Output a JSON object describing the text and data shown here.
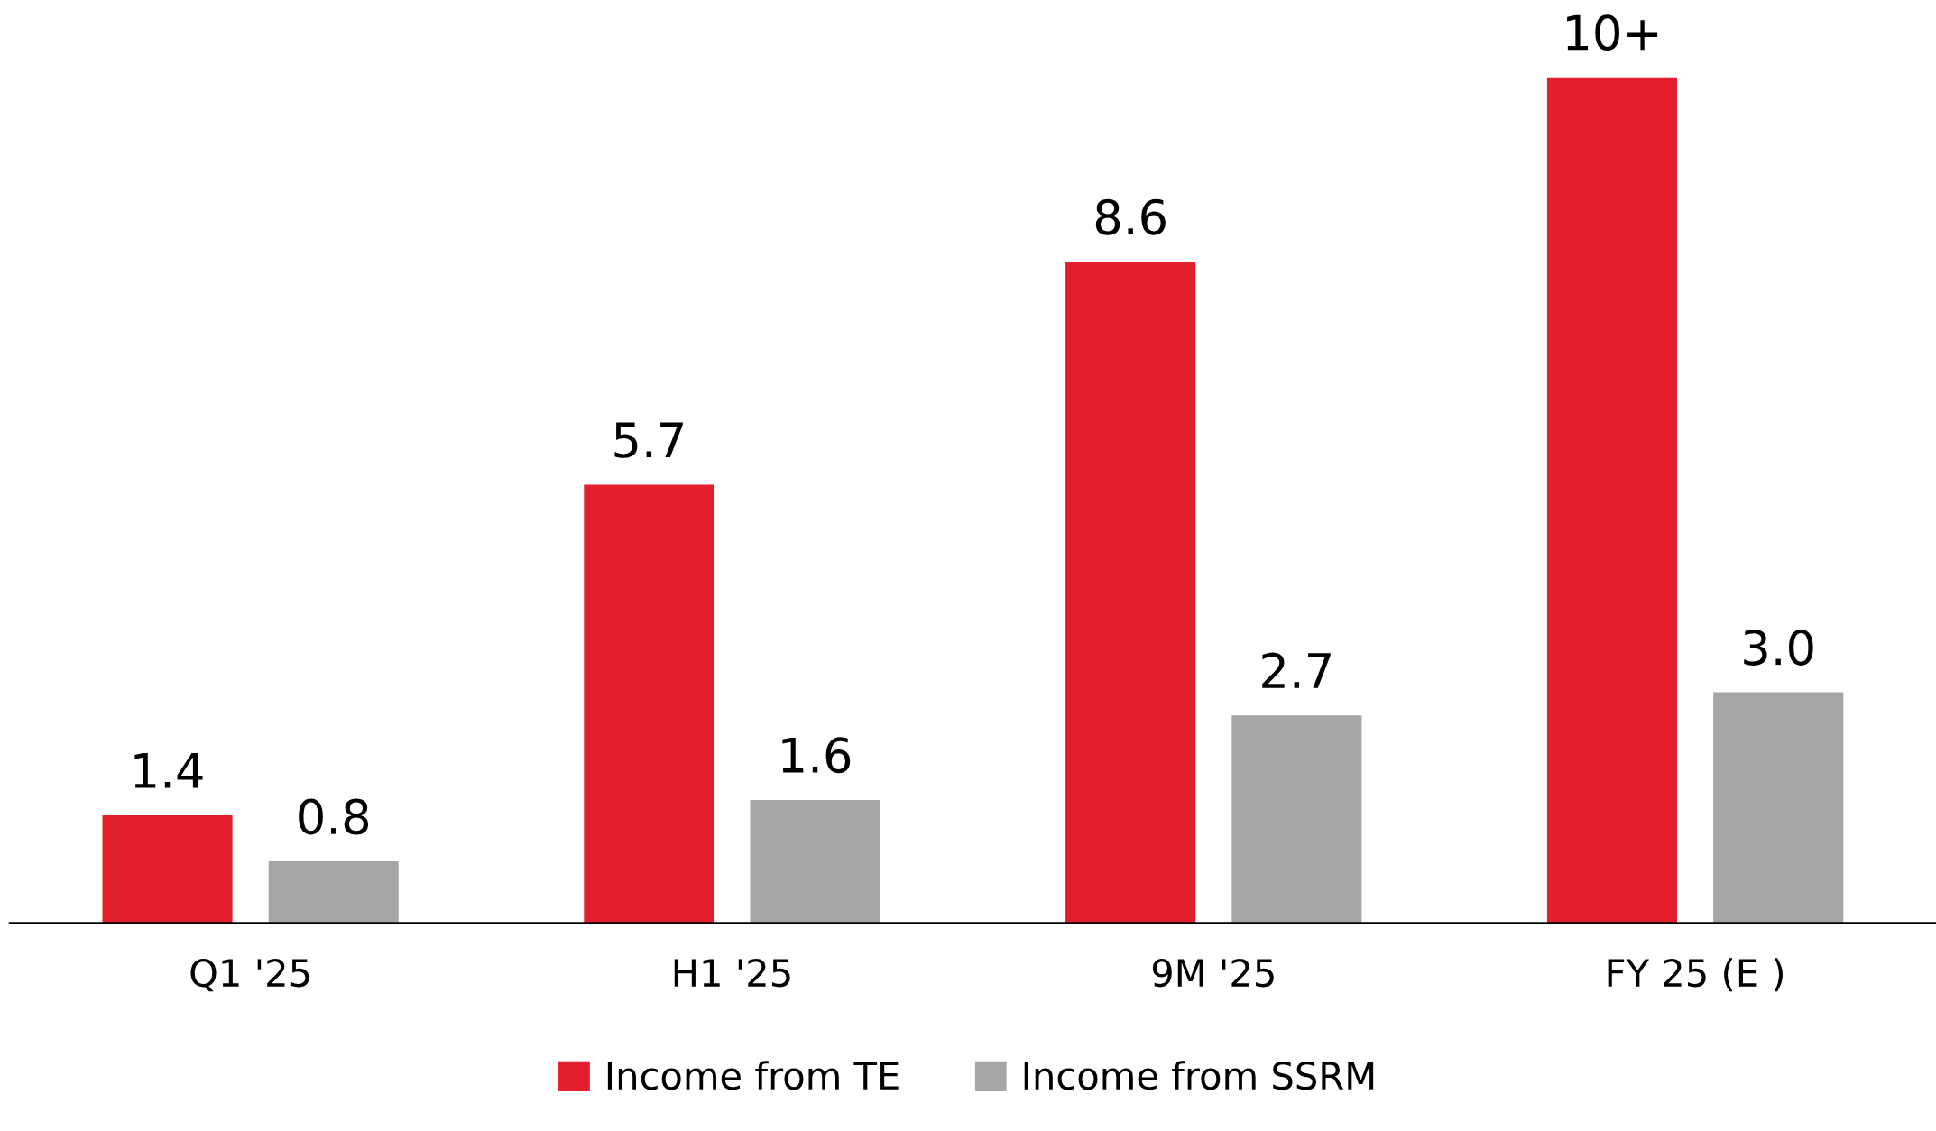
{
  "chart_data": {
    "type": "bar",
    "categories": [
      "Q1 '25",
      "H1 '25",
      "9M '25",
      "FY 25 (E )"
    ],
    "series": [
      {
        "name": "Income from TE",
        "color": "#e31e2d",
        "values": [
          1.4,
          5.7,
          8.6,
          11.0
        ],
        "value_labels": [
          "1.4",
          "5.7",
          "8.6",
          "10+"
        ]
      },
      {
        "name": "Income from SSRM",
        "color": "#a6a6a6",
        "values": [
          0.8,
          1.6,
          2.7,
          3.0
        ],
        "value_labels": [
          "0.8",
          "1.6",
          "2.7",
          "3.0"
        ]
      }
    ],
    "tick_labels": "x",
    "grid": false,
    "legend": "bottom"
  }
}
